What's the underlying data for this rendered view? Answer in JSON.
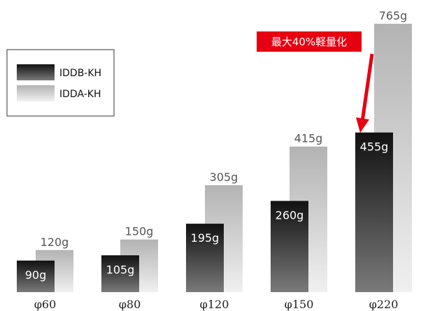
{
  "chart_data": {
    "type": "bar",
    "categories": [
      "φ60",
      "φ80",
      "φ120",
      "φ150",
      "φ220"
    ],
    "series": [
      {
        "name": "IDDB-KH",
        "values": [
          90,
          105,
          195,
          260,
          455
        ],
        "labels": [
          "90g",
          "105g",
          "195g",
          "260g",
          "455g"
        ],
        "color": "#1a1a1a"
      },
      {
        "name": "IDDA-KH",
        "values": [
          120,
          150,
          305,
          415,
          765
        ],
        "labels": [
          "120g",
          "150g",
          "305g",
          "415g",
          "765g"
        ],
        "color": "#b5b5b5"
      }
    ],
    "ylim": [
      0,
      765
    ],
    "grid": false,
    "legend_position": "top-left",
    "annotation": {
      "text": "最大40%軽量化",
      "color": "#e60012"
    }
  }
}
